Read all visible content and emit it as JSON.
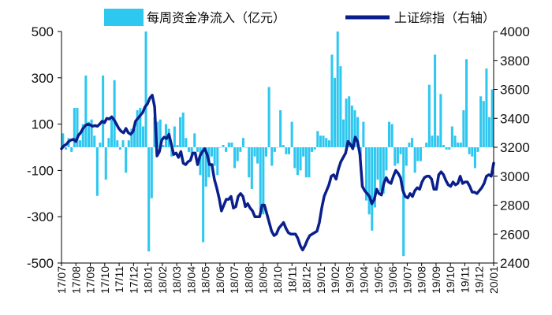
{
  "chart_data": {
    "type": "bar+line",
    "title": "",
    "legend_position": "top",
    "grid": false,
    "colors": {
      "bars": "#2ec7f0",
      "line": "#0b1f8c",
      "axis": "#000000"
    },
    "left_axis": {
      "ylim": [
        -500,
        500
      ],
      "ticks": [
        500,
        300,
        100,
        -100,
        -300,
        -500
      ]
    },
    "right_axis": {
      "ylim": [
        2400,
        4000
      ],
      "ticks": [
        4000,
        3800,
        3600,
        3400,
        3200,
        3000,
        2800,
        2600,
        2400
      ]
    },
    "x_tick_labels": [
      "17/07",
      "17/08",
      "17/09",
      "17/10",
      "17/11",
      "17/12",
      "18/01",
      "18/02",
      "18/03",
      "18/04",
      "18/05",
      "18/06",
      "18/07",
      "18/08",
      "18/09",
      "18/10",
      "18/11",
      "18/12",
      "19/01",
      "19/02",
      "19/03",
      "19/04",
      "19/05",
      "19/06",
      "19/07",
      "19/08",
      "19/09",
      "19/10",
      "19/11",
      "19/12",
      "20/01"
    ],
    "series": [
      {
        "name": "每周资金净流入（亿元）",
        "type": "bar",
        "axis": "left",
        "values": [
          60,
          -10,
          40,
          -20,
          170,
          170,
          30,
          100,
          310,
          110,
          120,
          50,
          -210,
          20,
          310,
          -140,
          40,
          120,
          290,
          30,
          -10,
          30,
          -110,
          30,
          80,
          80,
          160,
          170,
          90,
          500,
          -450,
          -220,
          130,
          110,
          120,
          10,
          100,
          80,
          -40,
          90,
          10,
          130,
          150,
          40,
          -20,
          -30,
          60,
          -20,
          -120,
          -410,
          -170,
          -130,
          -40,
          -80,
          -120,
          0,
          10,
          -20,
          20,
          20,
          -90,
          -60,
          -20,
          40,
          0,
          -130,
          -180,
          -40,
          -70,
          -270,
          -290,
          -40,
          260,
          -80,
          -20,
          0,
          160,
          10,
          -30,
          -30,
          110,
          -90,
          -120,
          -100,
          -40,
          -130,
          -130,
          -20,
          -10,
          70,
          50,
          50,
          40,
          30,
          400,
          300,
          500,
          350,
          120,
          210,
          220,
          180,
          160,
          130,
          -40,
          110,
          -230,
          -290,
          -360,
          -260,
          -140,
          -190,
          -200,
          -100,
          110,
          100,
          -80,
          -70,
          -30,
          -470,
          -80,
          20,
          40,
          -110,
          -60,
          -60,
          0,
          20,
          270,
          50,
          400,
          50,
          230,
          10,
          -10,
          -10,
          90,
          50,
          20,
          20,
          160,
          380,
          -30,
          -40,
          -90,
          -20,
          220,
          200,
          340,
          130,
          250
        ],
        "values_note": ""
      },
      {
        "name": "上证综指（右轴）",
        "type": "line",
        "axis": "right",
        "values": [
          3190,
          3210,
          3220,
          3240,
          3250,
          3255,
          3240,
          3280,
          3300,
          3330,
          3350,
          3360,
          3355,
          3345,
          3350,
          3345,
          3360,
          3380,
          3370,
          3400,
          3395,
          3410,
          3390,
          3360,
          3330,
          3310,
          3300,
          3330,
          3300,
          3290,
          3310,
          3380,
          3400,
          3420,
          3440,
          3480,
          3500,
          3540,
          3560,
          3480,
          3140,
          3170,
          3250,
          3270,
          3260,
          3290,
          3220,
          3150,
          3160,
          3130,
          3170,
          3090,
          3080,
          3100,
          3110,
          3160,
          3160,
          3080,
          3140,
          3170,
          3190,
          3150,
          3080,
          3080,
          2980,
          2920,
          2850,
          2760,
          2800,
          2840,
          2840,
          2860,
          2780,
          2790,
          2860,
          2880,
          2860,
          2790,
          2810,
          2780,
          2760,
          2720,
          2720,
          2720,
          2800,
          2800,
          2740,
          2680,
          2620,
          2590,
          2600,
          2640,
          2660,
          2680,
          2640,
          2610,
          2600,
          2600,
          2600,
          2570,
          2520,
          2490,
          2520,
          2560,
          2590,
          2600,
          2610,
          2620,
          2680,
          2780,
          2860,
          2900,
          2940,
          3000,
          3010,
          2980,
          3050,
          3100,
          3130,
          3160,
          3240,
          3220,
          3190,
          3270,
          3240,
          3150,
          2930,
          2900,
          2880,
          2860,
          2810,
          2840,
          2910,
          2880,
          2870,
          2950,
          2990,
          2960,
          2950,
          3000,
          3040,
          3020,
          2990,
          2900,
          2860,
          2850,
          2880,
          2860,
          2900,
          2920,
          2910,
          2960,
          2990,
          3000,
          3000,
          2980,
          2910,
          2910,
          3010,
          3030,
          3010,
          2970,
          2940,
          2930,
          2960,
          2940,
          2950,
          3000,
          2950,
          2960,
          2960,
          2930,
          2890,
          2890,
          2880,
          2900,
          2920,
          2950,
          3000,
          3010,
          3000,
          3090
        ]
      }
    ]
  }
}
